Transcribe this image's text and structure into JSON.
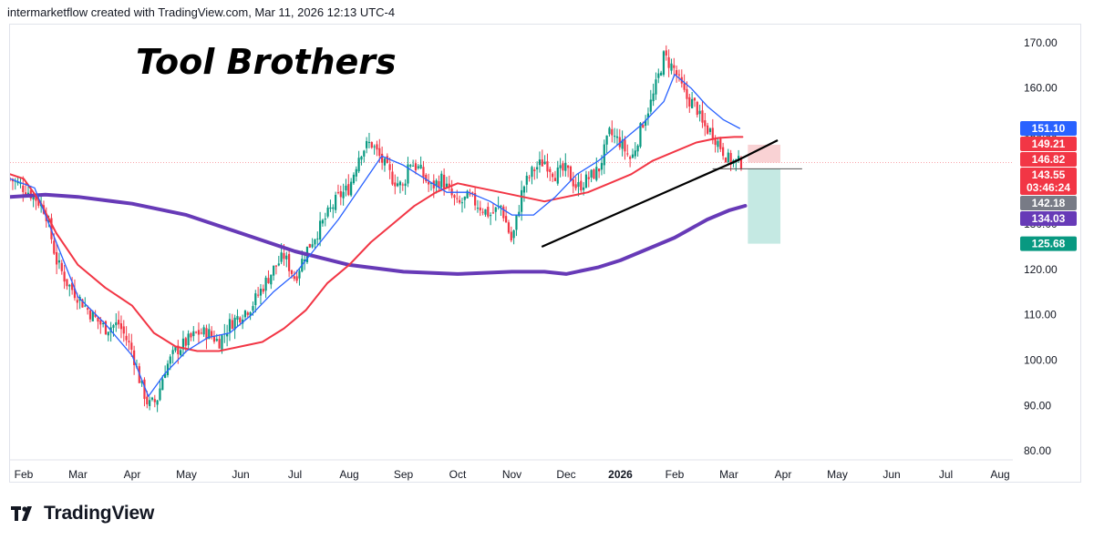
{
  "header": {
    "credit": "intermarketflow created with TradingView.com, Mar 11, 2026 12:13 UTC-4"
  },
  "footer": {
    "brand": "TradingView"
  },
  "colors": {
    "ema_fast": "#2962ff",
    "ema_mid": "#f23645",
    "ma_slow": "#673ab7",
    "up": "#089981",
    "down": "#f23645",
    "trendline": "#000000",
    "stop_zone": "#f7c7c9",
    "target_zone": "#b7e3dc"
  },
  "chart_data": {
    "type": "line",
    "title": "Tool Brothers",
    "y_axis_side": "right",
    "ylim": [
      78,
      174
    ],
    "y_ticks": [
      "170.00",
      "160.00",
      "150.00",
      "140.00",
      "130.00",
      "120.00",
      "110.00",
      "100.00",
      "90.00",
      "80.00"
    ],
    "x_ticks": [
      "Feb",
      "Mar",
      "Apr",
      "May",
      "Jun",
      "Jul",
      "Aug",
      "Sep",
      "Oct",
      "Nov",
      "Dec",
      "2026",
      "Feb",
      "Mar",
      "Apr",
      "May",
      "Jun",
      "Jul",
      "Aug"
    ],
    "x_tick_months": [
      0,
      1,
      2,
      3,
      4,
      5,
      6,
      7,
      8,
      9,
      10,
      11,
      12,
      13,
      14,
      15,
      16,
      17,
      18
    ],
    "price_badges": [
      {
        "label": "151.10",
        "value": 151.1,
        "color": "#2962ff"
      },
      {
        "label": "149.21",
        "value": 149.21,
        "color": "#f23645"
      },
      {
        "label": "146.82",
        "value": 146.82,
        "color": "#f23645"
      },
      {
        "label": "143.55",
        "value": 143.55,
        "color": "#f23645",
        "sub": "03:46:24"
      },
      {
        "label": "142.18",
        "value": 142.18,
        "color": "#787b86"
      },
      {
        "label": "134.03",
        "value": 134.03,
        "color": "#673ab7"
      },
      {
        "label": "125.68",
        "value": 125.68,
        "color": "#089981"
      }
    ],
    "price_series": {
      "name": "",
      "months": [
        -0.25,
        0,
        0.2,
        0.4,
        0.6,
        0.8,
        1.0,
        1.25,
        1.5,
        1.75,
        2.0,
        2.15,
        2.3,
        2.45,
        2.6,
        2.8,
        3.0,
        3.2,
        3.4,
        3.6,
        3.8,
        4.0,
        4.2,
        4.4,
        4.6,
        4.8,
        5.0,
        5.2,
        5.4,
        5.6,
        5.8,
        6.0,
        6.2,
        6.4,
        6.6,
        6.8,
        7.0,
        7.1,
        7.3,
        7.5,
        7.7,
        7.9,
        8.0,
        8.2,
        8.4,
        8.6,
        8.8,
        9.0,
        9.2,
        9.4,
        9.6,
        9.8,
        10.0,
        10.2,
        10.4,
        10.6,
        10.8,
        11.0,
        11.2,
        11.4,
        11.6,
        11.8,
        12.0,
        12.2,
        12.4,
        12.5,
        12.7,
        12.9,
        13.0,
        13.15,
        13.25
      ],
      "values": [
        140,
        138,
        136,
        133,
        122,
        117,
        114,
        110,
        107,
        108,
        102,
        95,
        90,
        91,
        98,
        102,
        104,
        106,
        106,
        104,
        108,
        110,
        112,
        116,
        120,
        123,
        118,
        124,
        128,
        132,
        136,
        138,
        146,
        148,
        144,
        140,
        138,
        144,
        142,
        138,
        140,
        136,
        134,
        136,
        134,
        132,
        134,
        126,
        138,
        142,
        144,
        141,
        142,
        138,
        140,
        142,
        150,
        148,
        144,
        152,
        158,
        167,
        164,
        158,
        156,
        152,
        150,
        146,
        144,
        143.55,
        143.55
      ]
    },
    "ema_fast": {
      "months": [
        -0.25,
        0.2,
        0.6,
        1.0,
        1.5,
        2.0,
        2.3,
        2.6,
        3.0,
        3.4,
        3.8,
        4.2,
        4.6,
        5.0,
        5.4,
        5.8,
        6.2,
        6.6,
        7.0,
        7.4,
        7.8,
        8.2,
        8.6,
        9.0,
        9.4,
        9.8,
        10.2,
        10.6,
        11.0,
        11.4,
        11.8,
        12.0,
        12.3,
        12.6,
        12.9,
        13.2
      ],
      "values": [
        140,
        138,
        126,
        114,
        108,
        101,
        92,
        97,
        102,
        105,
        106,
        110,
        115,
        119,
        125,
        131,
        138,
        145,
        143,
        140,
        137,
        137,
        135,
        132,
        132,
        136,
        141,
        144,
        148,
        152,
        157,
        163,
        160,
        156,
        153,
        151.1
      ]
    },
    "ema_mid": {
      "months": [
        -0.25,
        0,
        0.3,
        0.6,
        1.0,
        1.5,
        2.0,
        2.4,
        2.8,
        3.2,
        3.6,
        4.0,
        4.4,
        4.8,
        5.2,
        5.6,
        6.0,
        6.4,
        6.8,
        7.2,
        7.6,
        8.0,
        8.4,
        8.8,
        9.2,
        9.6,
        10.0,
        10.4,
        10.8,
        11.2,
        11.6,
        12.0,
        12.4,
        12.8,
        13.1,
        13.25
      ],
      "values": [
        141,
        140,
        135,
        128,
        121,
        116,
        112,
        106,
        103,
        102,
        102,
        103,
        104,
        107,
        111,
        117,
        121,
        126,
        130,
        134,
        137,
        139,
        138,
        137,
        136,
        135,
        136,
        137,
        139,
        141,
        144,
        146,
        148,
        149,
        149.21,
        149.21
      ]
    },
    "ma_slow": {
      "months": [
        -0.25,
        0.4,
        1.0,
        2.0,
        3.0,
        4.0,
        5.0,
        6.0,
        7.0,
        8.0,
        9.0,
        9.6,
        10.0,
        10.6,
        11.0,
        11.6,
        12.0,
        12.6,
        13.0,
        13.3
      ],
      "values": [
        136,
        136.5,
        136,
        134.5,
        132,
        128,
        124,
        121,
        119.5,
        119,
        119.5,
        119.5,
        119,
        120.5,
        122,
        125,
        127,
        131,
        133,
        134.03
      ]
    },
    "trendline": {
      "months": [
        9.55,
        13.15,
        13.9
      ],
      "values": [
        125,
        144,
        148.5
      ]
    },
    "horizontal_level": {
      "value": 142.18,
      "from_month": 12.7,
      "to_month": 14.35
    },
    "current_price_line": {
      "value": 143.55
    },
    "stop_zone": {
      "from_month": 13.35,
      "to_month": 13.95,
      "top": 147.5,
      "bottom": 143.55
    },
    "target_zone": {
      "from_month": 13.35,
      "to_month": 13.95,
      "top": 142.18,
      "bottom": 125.68
    }
  }
}
